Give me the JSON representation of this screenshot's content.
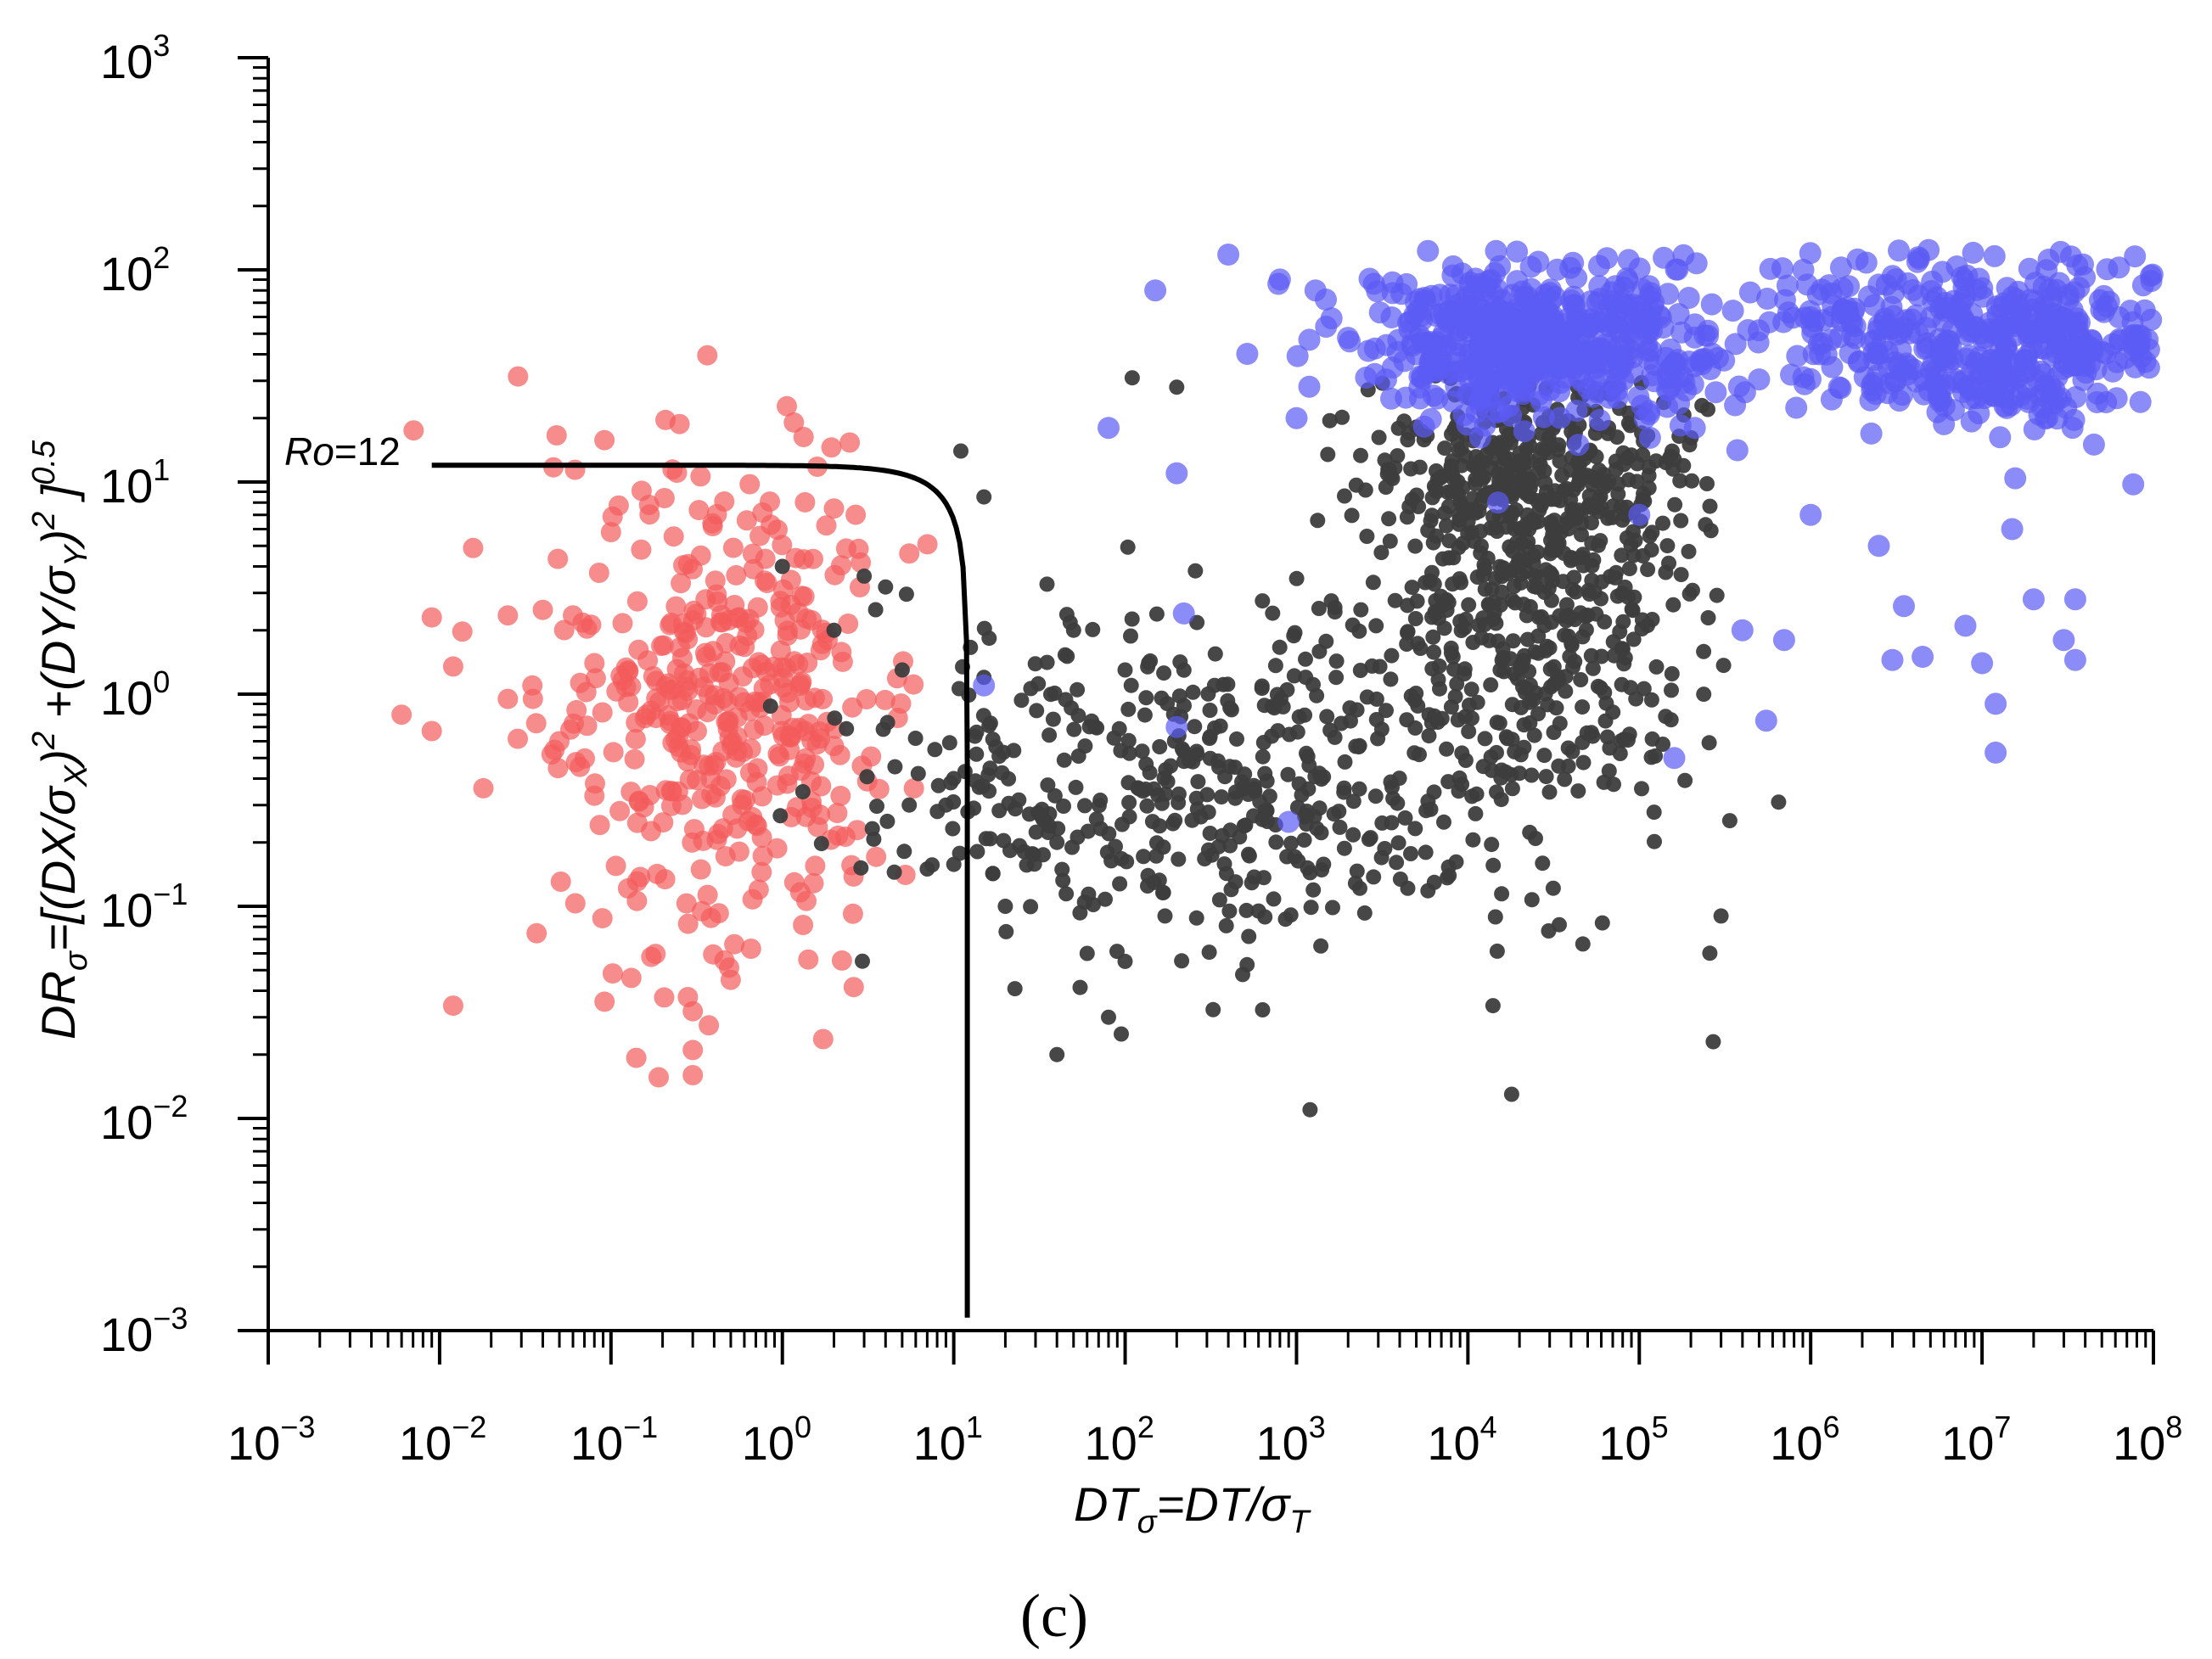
{
  "chart_data": {
    "type": "scatter",
    "title": "",
    "panel_label": "(c)",
    "x_scale": "log",
    "y_scale": "log",
    "xlim": [
      0.001,
      100000000
    ],
    "ylim": [
      0.001,
      1000
    ],
    "xlabel": {
      "main": "DT",
      "sub": "σ",
      "rest": "=DT/σ",
      "rest_sub": "T"
    },
    "ylabel": {
      "p1": "DR",
      "p1_sub": "σ",
      "p2": "=[(DX/σ",
      "p2_sub": "X",
      "p3": ")",
      "p3_sup": "2",
      "p4": " +(DY/σ",
      "p4_sub": "Y",
      "p5": ")",
      "p5_sup": "2",
      "p6": " ]",
      "p6_sup": "0.5"
    },
    "x_ticks": [
      {
        "base": "10",
        "exp": "−3"
      },
      {
        "base": "10",
        "exp": "−2"
      },
      {
        "base": "10",
        "exp": "−1"
      },
      {
        "base": "10",
        "exp": "0"
      },
      {
        "base": "10",
        "exp": "1"
      },
      {
        "base": "10",
        "exp": "2"
      },
      {
        "base": "10",
        "exp": "3"
      },
      {
        "base": "10",
        "exp": "4"
      },
      {
        "base": "10",
        "exp": "5"
      },
      {
        "base": "10",
        "exp": "6"
      },
      {
        "base": "10",
        "exp": "7"
      },
      {
        "base": "10",
        "exp": "8"
      }
    ],
    "y_ticks": [
      {
        "base": "10",
        "exp": "−3"
      },
      {
        "base": "10",
        "exp": "−2"
      },
      {
        "base": "10",
        "exp": "−1"
      },
      {
        "base": "10",
        "exp": "0"
      },
      {
        "base": "10",
        "exp": "1"
      },
      {
        "base": "10",
        "exp": "2"
      },
      {
        "base": "10",
        "exp": "3"
      }
    ],
    "threshold_curve": {
      "label_italic": "Ro",
      "label_rest": "=12",
      "Ro": 12,
      "color": "#000000",
      "x_range": [
        0.009,
        12
      ]
    },
    "series": [
      {
        "name": "red cluster",
        "color": "#f45b5b",
        "opacity": 0.7,
        "clusters": [
          {
            "cx": 0.5,
            "cy": 0.9,
            "sx": 0.5,
            "sy": 0.55,
            "n": 420
          }
        ],
        "points": [
          [
            0.006,
            0.8
          ],
          [
            0.009,
            0.67
          ],
          [
            0.009,
            2.3
          ],
          [
            0.012,
            1.35
          ],
          [
            0.018,
            0.36
          ],
          [
            0.025,
            2.35
          ],
          [
            0.025,
            0.95
          ],
          [
            0.035,
            0.95
          ],
          [
            0.045,
            0.52
          ],
          [
            0.05,
            0.6
          ],
          [
            0.06,
            2.35
          ],
          [
            0.08,
            1.4
          ],
          [
            0.012,
            0.034
          ],
          [
            0.3,
            0.032
          ],
          [
            0.3,
            0.021
          ],
          [
            0.3,
            0.016
          ],
          [
            1.6,
            11.8
          ],
          [
            0.5,
            0.045
          ],
          [
            0.1,
            5.8
          ],
          [
            0.15,
            4.8
          ],
          [
            5.5,
            4.6
          ],
          [
            2,
            7.5
          ]
        ]
      },
      {
        "name": "black cluster",
        "color": "#3d3d3d",
        "opacity": 0.95,
        "clusters": [
          {
            "cx": 300,
            "cy": 0.35,
            "sx": 1.0,
            "sy": 0.42,
            "n": 480
          },
          {
            "cx": 25000,
            "cy": 3.0,
            "sx": 0.5,
            "sy": 0.5,
            "n": 520
          },
          {
            "cx": 25000,
            "cy": 12,
            "sx": 0.45,
            "sy": 0.22,
            "n": 260
          }
        ],
        "points": [
          [
            1,
            4
          ],
          [
            2,
            2
          ],
          [
            3,
            3.6
          ],
          [
            3.5,
            2.5
          ],
          [
            4,
            3.2
          ],
          [
            5,
            1.3
          ],
          [
            5.5,
            0.3
          ],
          [
            7,
            0.15
          ],
          [
            9,
            0.3
          ],
          [
            10,
            0.4
          ],
          [
            11,
            14
          ],
          [
            15,
            8.5
          ],
          [
            15,
            1.2
          ],
          [
            20,
            0.1
          ],
          [
            40,
            0.02
          ],
          [
            40,
            0.2
          ],
          [
            60,
            0.06
          ],
          [
            80,
            0.03
          ],
          [
            95,
            0.025
          ],
          [
            100,
            0.055
          ],
          [
            100,
            1.3
          ],
          [
            110,
            31
          ],
          [
            200,
            28
          ],
          [
            1200,
            0.011
          ],
          [
            14000,
            0.034
          ],
          [
            18000,
            0.013
          ],
          [
            270000,
            0.023
          ],
          [
            300000,
            0.09
          ],
          [
            650000,
            0.31
          ],
          [
            35,
            3.3
          ],
          [
            50,
            2
          ]
        ]
      },
      {
        "name": "blue cluster",
        "color": "#5b5bf5",
        "opacity": 0.7,
        "clusters": [
          {
            "cx": 25000,
            "cy": 45,
            "sx": 0.55,
            "sy": 0.18,
            "n": 560
          },
          {
            "cx": 20000000,
            "cy": 45,
            "sx": 0.45,
            "sy": 0.2,
            "n": 360
          },
          {
            "cx": 2000000,
            "cy": 55,
            "sx": 0.4,
            "sy": 0.2,
            "n": 140
          }
        ],
        "points": [
          [
            80,
            18
          ],
          [
            150,
            80
          ],
          [
            200,
            11
          ],
          [
            15,
            1.1
          ],
          [
            200,
            0.7
          ],
          [
            220,
            2.4
          ],
          [
            900,
            0.25
          ],
          [
            400,
            118
          ],
          [
            800,
            90
          ],
          [
            1000,
            20
          ],
          [
            5000,
            40
          ],
          [
            15000,
            8
          ],
          [
            400000,
            2
          ],
          [
            550000,
            0.75
          ],
          [
            700000,
            1.8
          ],
          [
            3000000,
            1.45
          ],
          [
            4500000,
            1.5
          ],
          [
            12000000,
            0.53
          ],
          [
            12000000,
            0.9
          ],
          [
            10000000,
            1.4
          ],
          [
            8000000,
            2.1
          ],
          [
            20000000,
            2.8
          ],
          [
            30000000,
            1.8
          ],
          [
            35000000,
            1.45
          ],
          [
            35000000,
            2.8
          ],
          [
            2500000,
            5
          ],
          [
            1000000,
            7
          ],
          [
            15000000,
            6
          ],
          [
            160000,
            0.5
          ],
          [
            100000,
            7
          ],
          [
            3500000,
            2.6
          ]
        ]
      }
    ]
  }
}
